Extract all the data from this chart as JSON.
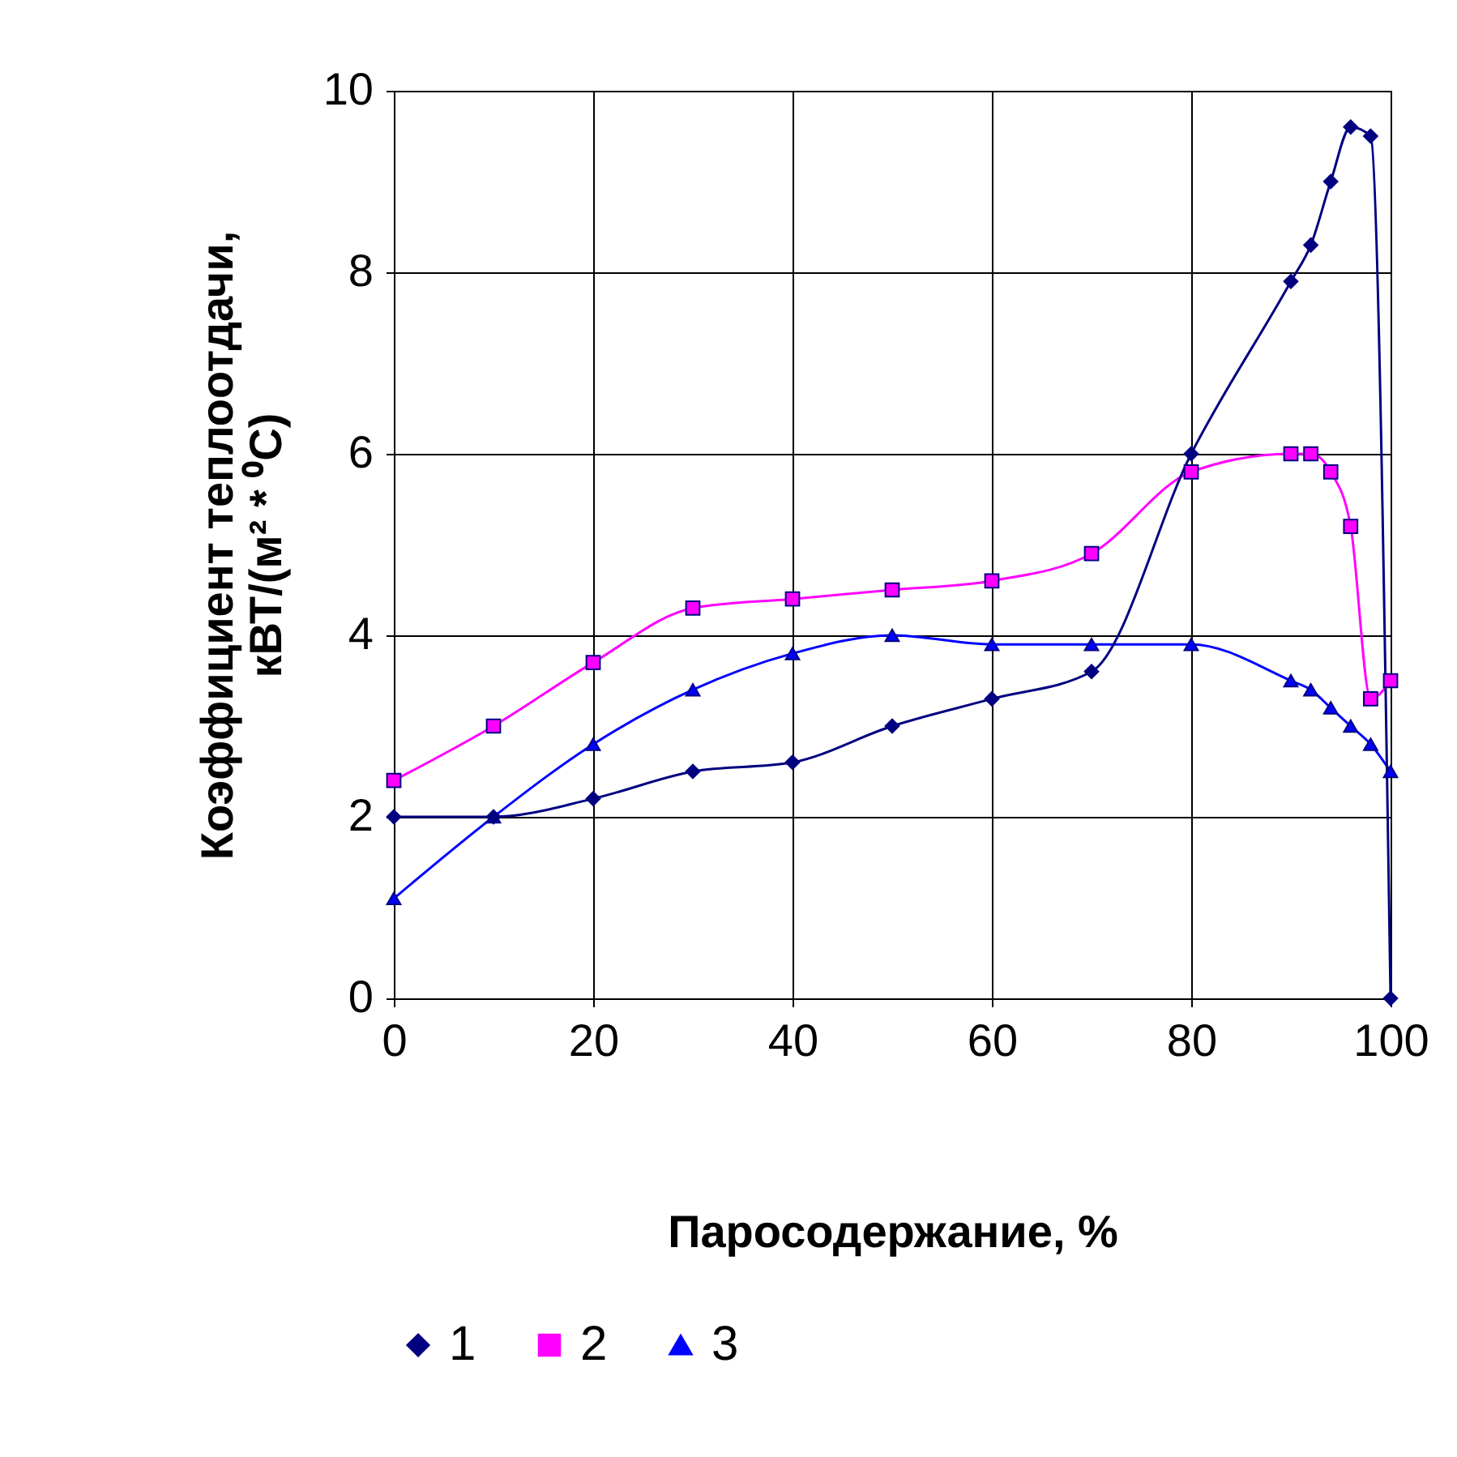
{
  "chart_data": {
    "type": "line",
    "xlabel": "Паросодержание, %",
    "ylabel": "Коэффициент теплоотдачи,\nкВТ/(м² * ⁰С)",
    "x": [
      0,
      10,
      20,
      30,
      40,
      50,
      60,
      70,
      80,
      90,
      92,
      94,
      96,
      98,
      100
    ],
    "series": [
      {
        "name": "1",
        "color": "#000080",
        "marker": "diamond",
        "values": [
          2,
          2,
          2.2,
          2.5,
          2.6,
          3,
          3.3,
          3.6,
          6,
          7.9,
          8.3,
          9,
          9.6,
          9.5,
          0
        ]
      },
      {
        "name": "2",
        "color": "#ff00ff",
        "marker": "square",
        "values": [
          2.4,
          3,
          3.7,
          4.3,
          4.4,
          4.5,
          4.6,
          4.9,
          5.8,
          6,
          6,
          5.8,
          5.2,
          3.3,
          3.5
        ]
      },
      {
        "name": "3",
        "color": "#0000ff",
        "marker": "triangle",
        "values": [
          1.1,
          2,
          2.8,
          3.4,
          3.8,
          4,
          3.9,
          3.9,
          3.9,
          3.5,
          3.4,
          3.2,
          3,
          2.8,
          2.5
        ]
      }
    ],
    "xlim": [
      0,
      100
    ],
    "xticks": [
      0,
      20,
      40,
      60,
      80,
      100
    ],
    "ylim": [
      0,
      10
    ],
    "yticks": [
      0,
      2,
      4,
      6,
      8,
      10
    ],
    "grid": true,
    "legend": "bottom"
  }
}
